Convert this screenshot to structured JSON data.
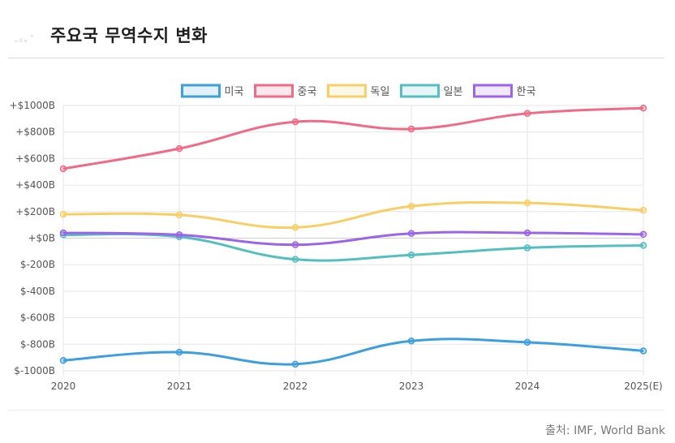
{
  "header": {
    "title": "주요국 무역수지 변화"
  },
  "footer": {
    "source": "출처: IMF, World Bank"
  },
  "chart_data": {
    "type": "line",
    "title": "주요국 무역수지 변화",
    "x": [
      "2020",
      "2021",
      "2022",
      "2023",
      "2024",
      "2025(E)"
    ],
    "ylim": [
      -1000,
      1000
    ],
    "yticks": [
      1000,
      800,
      600,
      400,
      200,
      0,
      -200,
      -400,
      -600,
      -800,
      -1000
    ],
    "ytick_labels": [
      "+$1000B",
      "+$800B",
      "+$600B",
      "+$400B",
      "+$200B",
      "+$0B",
      "$-200B",
      "$-400B",
      "$-600B",
      "$-800B",
      "$-1000B"
    ],
    "grid": true,
    "legend_position": "top",
    "series": [
      {
        "name": "미국",
        "color": "#3d9fdb",
        "values": [
          -922,
          -860,
          -950,
          -775,
          -785,
          -850
        ]
      },
      {
        "name": "중국",
        "color": "#ef6b87",
        "values": [
          523,
          675,
          877,
          823,
          940,
          980
        ]
      },
      {
        "name": "독일",
        "color": "#f7cf65",
        "values": [
          180,
          175,
          80,
          240,
          265,
          210
        ]
      },
      {
        "name": "일본",
        "color": "#55bfbf",
        "values": [
          25,
          10,
          -160,
          -127,
          -73,
          -55
        ]
      },
      {
        "name": "한국",
        "color": "#9b65e8",
        "values": [
          40,
          25,
          -50,
          35,
          40,
          28
        ]
      }
    ]
  }
}
